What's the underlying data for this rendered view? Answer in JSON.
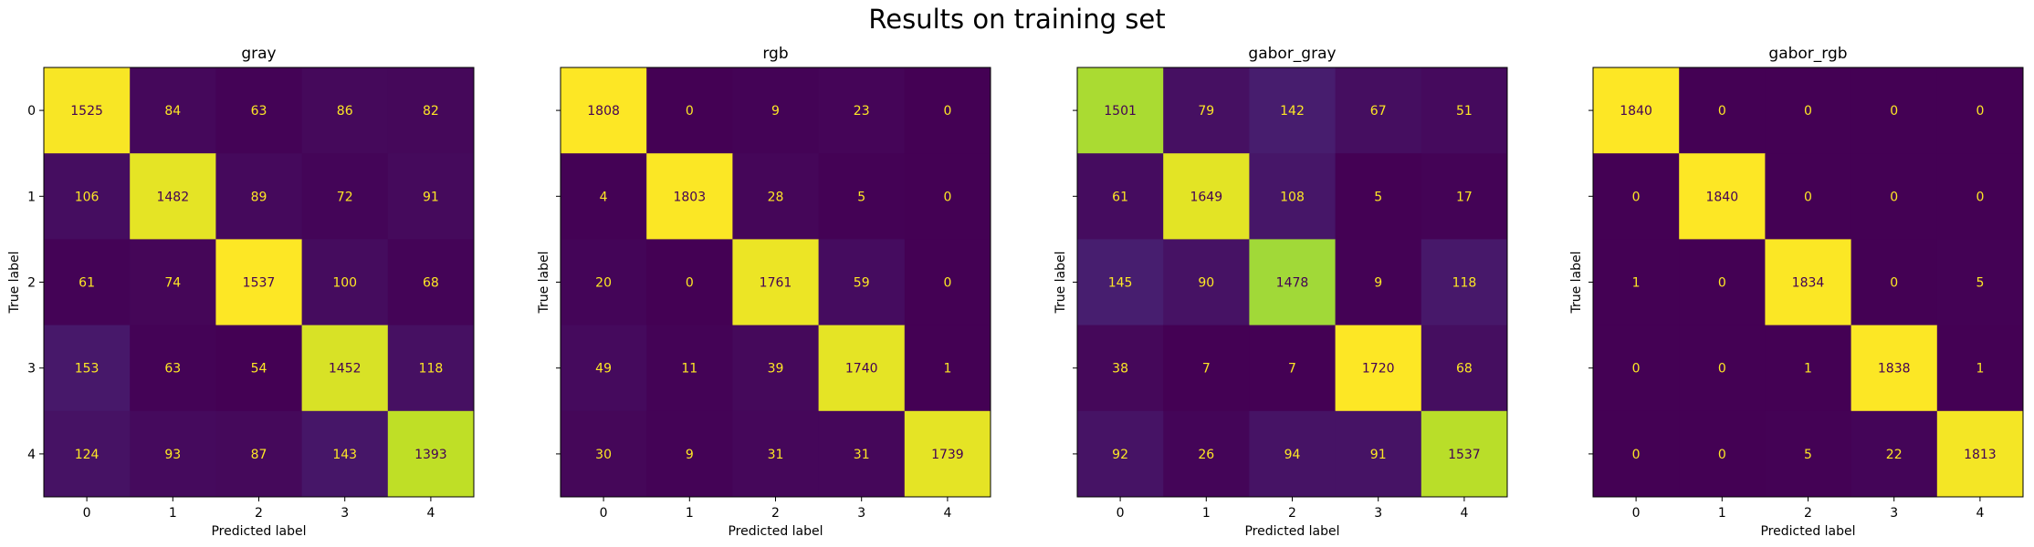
{
  "figure": {
    "suptitle": "Results on training set"
  },
  "chart_data": [
    {
      "type": "heatmap",
      "title": "gray",
      "xlabel": "Predicted label",
      "ylabel": "True label",
      "x_ticks": [
        "0",
        "1",
        "2",
        "3",
        "4"
      ],
      "y_ticks": [
        "0",
        "1",
        "2",
        "3",
        "4"
      ],
      "colormap": "viridis",
      "matrix": [
        [
          1525,
          84,
          63,
          86,
          82
        ],
        [
          106,
          1482,
          89,
          72,
          91
        ],
        [
          61,
          74,
          1537,
          100,
          68
        ],
        [
          153,
          63,
          54,
          1452,
          118
        ],
        [
          124,
          93,
          87,
          143,
          1393
        ]
      ]
    },
    {
      "type": "heatmap",
      "title": "rgb",
      "xlabel": "Predicted label",
      "ylabel": "True label",
      "x_ticks": [
        "0",
        "1",
        "2",
        "3",
        "4"
      ],
      "y_ticks": [
        "0",
        "1",
        "2",
        "3",
        "4"
      ],
      "colormap": "viridis",
      "matrix": [
        [
          1808,
          0,
          9,
          23,
          0
        ],
        [
          4,
          1803,
          28,
          5,
          0
        ],
        [
          20,
          0,
          1761,
          59,
          0
        ],
        [
          49,
          11,
          39,
          1740,
          1
        ],
        [
          30,
          9,
          31,
          31,
          1739
        ]
      ]
    },
    {
      "type": "heatmap",
      "title": "gabor_gray",
      "xlabel": "Predicted label",
      "ylabel": "True label",
      "x_ticks": [
        "0",
        "1",
        "2",
        "3",
        "4"
      ],
      "y_ticks": [
        "0",
        "1",
        "2",
        "3",
        "4"
      ],
      "colormap": "viridis",
      "matrix": [
        [
          1501,
          79,
          142,
          67,
          51
        ],
        [
          61,
          1649,
          108,
          5,
          17
        ],
        [
          145,
          90,
          1478,
          9,
          118
        ],
        [
          38,
          7,
          7,
          1720,
          68
        ],
        [
          92,
          26,
          94,
          91,
          1537
        ]
      ]
    },
    {
      "type": "heatmap",
      "title": "gabor_rgb",
      "xlabel": "Predicted label",
      "ylabel": "True label",
      "x_ticks": [
        "0",
        "1",
        "2",
        "3",
        "4"
      ],
      "y_ticks": [
        "0",
        "1",
        "2",
        "3",
        "4"
      ],
      "colormap": "viridis",
      "matrix": [
        [
          1840,
          0,
          0,
          0,
          0
        ],
        [
          0,
          1840,
          0,
          0,
          0
        ],
        [
          1,
          0,
          1834,
          0,
          5
        ],
        [
          0,
          0,
          1,
          1838,
          1
        ],
        [
          0,
          0,
          5,
          22,
          1813
        ]
      ]
    }
  ]
}
